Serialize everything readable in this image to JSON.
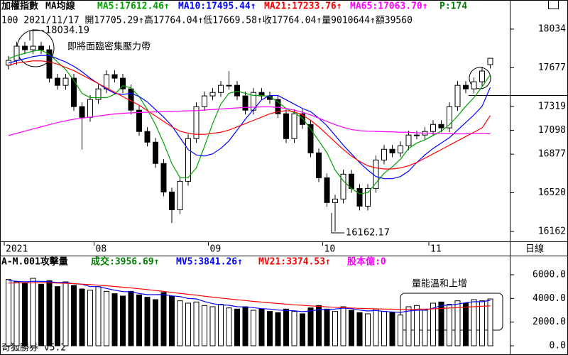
{
  "period": "日線",
  "footer": "奇狐勝券 v5.2",
  "chart_data": [
    {
      "type": "candlestick",
      "title": "加權指數",
      "indicator": "MA均線",
      "info": "P:174",
      "subtitle": "100  2021/11/17 開17705.29↑高17764.04↑低17669.58↑收17764.04↑量9010644↑額39560",
      "categories": [
        "2021",
        null,
        null,
        null,
        null,
        null,
        null,
        null,
        null,
        null,
        null,
        "08",
        null,
        null,
        null,
        null,
        null,
        null,
        null,
        null,
        null,
        null,
        null,
        null,
        null,
        "09",
        null,
        null,
        null,
        null,
        null,
        null,
        null,
        null,
        null,
        null,
        null,
        null,
        null,
        "10",
        null,
        null,
        null,
        null,
        null,
        null,
        null,
        null,
        null,
        null,
        null,
        null,
        "11",
        null,
        null,
        null,
        null,
        null,
        null,
        null
      ],
      "open": [
        17700,
        17745,
        17876,
        17843,
        17876,
        17843,
        17580,
        17514,
        17580,
        17317,
        17218,
        17383,
        17481,
        17613,
        17580,
        17481,
        17284,
        17087,
        16988,
        16791,
        16527,
        16363,
        16626,
        17021,
        17317,
        17416,
        17448,
        17514,
        17514,
        17416,
        17284,
        17448,
        17416,
        17383,
        17251,
        17021,
        17251,
        17152,
        16889,
        16659,
        16429,
        16462,
        16692,
        16560,
        16396,
        16560,
        16823,
        16922,
        16889,
        16955,
        17054,
        17054,
        17087,
        17152,
        17120,
        17317,
        17514,
        17481,
        17547,
        17705.29
      ],
      "high": [
        17785,
        17916,
        17916,
        18034.19,
        17916,
        17883,
        17620,
        17620,
        17620,
        17357,
        17423,
        17521,
        17653,
        17653,
        17620,
        17521,
        17324,
        17127,
        17028,
        16831,
        16567,
        16666,
        17061,
        17357,
        17456,
        17488,
        17554,
        17646,
        17554,
        17456,
        17488,
        17488,
        17456,
        17423,
        17291,
        17291,
        17291,
        17192,
        16929,
        16699,
        16502,
        16732,
        16732,
        16600,
        16600,
        16863,
        16962,
        16962,
        16995,
        17094,
        17094,
        17127,
        17192,
        17192,
        17357,
        17554,
        17554,
        17587,
        17686,
        17764.04
      ],
      "low": [
        17660,
        17705,
        17803,
        17803,
        17803,
        17540,
        17474,
        17474,
        17277,
        16920,
        17178,
        17343,
        17441,
        17540,
        17441,
        17244,
        17047,
        16948,
        16751,
        16487,
        16240,
        16323,
        16586,
        16981,
        17277,
        17376,
        17408,
        17474,
        17376,
        17244,
        17244,
        17376,
        17343,
        17211,
        16981,
        16981,
        17112,
        16849,
        16619,
        16389,
        16162.17,
        16422,
        16520,
        16356,
        16356,
        16520,
        16783,
        16849,
        16849,
        16915,
        17014,
        17014,
        17047,
        17080,
        17080,
        17277,
        17441,
        17441,
        17507,
        17669.58
      ],
      "close": [
        17745,
        17876,
        17843,
        17876,
        17843,
        17580,
        17514,
        17580,
        17317,
        17218,
        17383,
        17481,
        17613,
        17580,
        17481,
        17284,
        17087,
        16988,
        16791,
        16527,
        16363,
        16626,
        17021,
        17317,
        17416,
        17448,
        17514,
        17514,
        17416,
        17284,
        17448,
        17416,
        17383,
        17251,
        17021,
        17251,
        17152,
        16889,
        16659,
        16429,
        16462,
        16692,
        16560,
        16396,
        16560,
        16823,
        16922,
        16889,
        16955,
        17054,
        17054,
        17087,
        17152,
        17120,
        17317,
        17514,
        17481,
        17547,
        17646,
        17764.04
      ],
      "series": [
        {
          "name": "MA5:17612.46↑",
          "color": "#00a000",
          "values": [
            17760,
            17790,
            17810,
            17830,
            17840,
            17800,
            17730,
            17660,
            17560,
            17440,
            17400,
            17400,
            17400,
            17430,
            17510,
            17490,
            17410,
            17290,
            17150,
            16980,
            16790,
            16660,
            16660,
            16750,
            16950,
            17160,
            17340,
            17440,
            17460,
            17440,
            17420,
            17420,
            17410,
            17360,
            17300,
            17260,
            17210,
            17110,
            17000,
            16890,
            16730,
            16630,
            16560,
            16510,
            16520,
            16610,
            16700,
            16760,
            16830,
            16930,
            16980,
            17010,
            17050,
            17090,
            17150,
            17230,
            17320,
            17400,
            17500,
            17612.46
          ]
        },
        {
          "name": "MA10:17495.44↑",
          "color": "#0000ff",
          "values": [
            17720,
            17740,
            17760,
            17780,
            17790,
            17790,
            17760,
            17730,
            17690,
            17640,
            17580,
            17530,
            17480,
            17440,
            17430,
            17440,
            17410,
            17360,
            17290,
            17220,
            17140,
            17030,
            16920,
            16870,
            16860,
            16880,
            16930,
            17000,
            17100,
            17200,
            17290,
            17380,
            17420,
            17420,
            17380,
            17340,
            17300,
            17270,
            17210,
            17140,
            17050,
            16960,
            16880,
            16800,
            16730,
            16670,
            16650,
            16650,
            16670,
            16720,
            16800,
            16870,
            16930,
            16980,
            17030,
            17100,
            17170,
            17240,
            17320,
            17495.44
          ]
        },
        {
          "name": "MA21:17233.76↑",
          "color": "#ff0000",
          "values": [
            17700,
            17720,
            17730,
            17740,
            17740,
            17730,
            17710,
            17680,
            17650,
            17610,
            17570,
            17530,
            17490,
            17450,
            17410,
            17370,
            17330,
            17280,
            17230,
            17180,
            17130,
            17090,
            17070,
            17060,
            17060,
            17070,
            17080,
            17100,
            17130,
            17160,
            17190,
            17220,
            17250,
            17270,
            17280,
            17270,
            17240,
            17190,
            17130,
            17060,
            16990,
            16920,
            16860,
            16810,
            16770,
            16750,
            16740,
            16740,
            16750,
            16770,
            16800,
            16840,
            16880,
            16920,
            16960,
            17000,
            17040,
            17080,
            17120,
            17233.76
          ]
        },
        {
          "name": "MA65:17063.70↑",
          "color": "#ff00ff",
          "values": [
            17050,
            17070,
            17090,
            17110,
            17130,
            17150,
            17170,
            17185,
            17200,
            17210,
            17220,
            17230,
            17240,
            17250,
            17255,
            17260,
            17262,
            17265,
            17268,
            17270,
            17272,
            17275,
            17278,
            17280,
            17285,
            17290,
            17295,
            17300,
            17305,
            17310,
            17312,
            17315,
            17315,
            17310,
            17300,
            17285,
            17265,
            17240,
            17210,
            17180,
            17150,
            17125,
            17105,
            17095,
            17090,
            17088,
            17085,
            17083,
            17080,
            17080,
            17075,
            17072,
            17070,
            17068,
            17066,
            17065,
            17065,
            17068,
            17070,
            17063.7
          ]
        }
      ],
      "ylim": [
        16070,
        18172
      ],
      "yticks": [
        18034,
        17677,
        17319,
        17098,
        16877,
        16520,
        16162
      ],
      "annotations": [
        {
          "text": "18034.19"
        },
        {
          "text": "即將面臨密集壓力帶"
        },
        {
          "text": "16162.17"
        }
      ]
    },
    {
      "type": "bar",
      "title": "A-M.001攻擊量",
      "info": "股本億:0",
      "series": [
        {
          "name": "成交:3956.69↑",
          "color": "#008000",
          "values": [
            5600,
            5400,
            5300,
            5700,
            5200,
            5500,
            5000,
            5400,
            5100,
            4800,
            4700,
            5000,
            4600,
            4400,
            4200,
            4600,
            4300,
            4100,
            3900,
            4500,
            4200,
            3800,
            3600,
            3700,
            3400,
            3300,
            3500,
            3200,
            3100,
            3300,
            3000,
            3100,
            2900,
            2800,
            3100,
            2900,
            2700,
            3200,
            3400,
            3100,
            2900,
            3300,
            3000,
            2800,
            2700,
            3100,
            2900,
            2800,
            2600,
            3300,
            3400,
            3000,
            3600,
            3700,
            3500,
            3800,
            3600,
            3900,
            3800,
            3956.69
          ]
        },
        {
          "name": "MV5:3841.26↑",
          "color": "#0000ff",
          "values": [
            5500,
            5450,
            5400,
            5450,
            5440,
            5420,
            5340,
            5360,
            5240,
            5200,
            5000,
            5000,
            4840,
            4700,
            4580,
            4560,
            4420,
            4320,
            4320,
            4320,
            4220,
            4160,
            4000,
            3960,
            3740,
            3560,
            3460,
            3420,
            3300,
            3280,
            3220,
            3140,
            3100,
            3020,
            2980,
            2960,
            2880,
            2940,
            3060,
            3060,
            3100,
            3180,
            3140,
            3020,
            2940,
            2980,
            2900,
            2860,
            2820,
            2940,
            3000,
            3020,
            3180,
            3400,
            3440,
            3520,
            3640,
            3720,
            3720,
            3841.26
          ]
        },
        {
          "name": "MV21:3374.53↑",
          "color": "#ff0000",
          "values": [
            5300,
            5310,
            5320,
            5330,
            5330,
            5320,
            5300,
            5280,
            5250,
            5210,
            5170,
            5120,
            5070,
            5010,
            4950,
            4890,
            4820,
            4750,
            4670,
            4590,
            4510,
            4430,
            4350,
            4270,
            4190,
            4110,
            4030,
            3960,
            3890,
            3820,
            3750,
            3690,
            3630,
            3570,
            3520,
            3460,
            3420,
            3370,
            3330,
            3290,
            3250,
            3220,
            3190,
            3160,
            3140,
            3120,
            3100,
            3090,
            3080,
            3080,
            3090,
            3100,
            3120,
            3150,
            3190,
            3230,
            3270,
            3300,
            3340,
            3374.53
          ]
        }
      ],
      "ylim": [
        -600,
        7500
      ],
      "yticks": [
        {
          "value": 6000,
          "label": "6000.0"
        },
        {
          "value": 4000,
          "label": "4000.0"
        },
        {
          "value": 2000,
          "label": "2000.0"
        },
        {
          "value": 0,
          "label": "0.0"
        }
      ],
      "annotations": [
        {
          "text": "量能溫和上增"
        }
      ]
    }
  ]
}
